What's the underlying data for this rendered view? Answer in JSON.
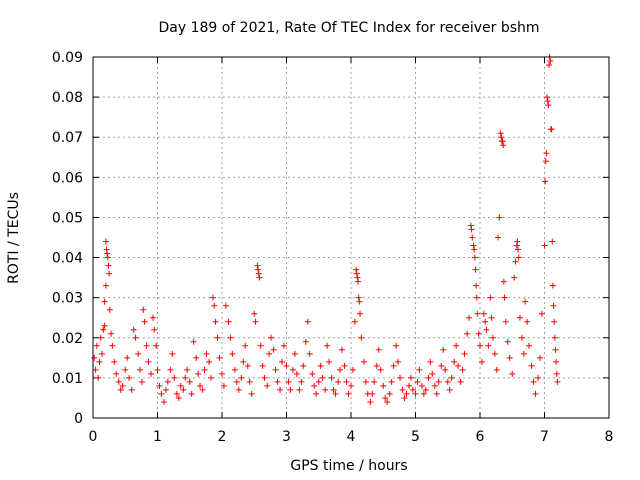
{
  "chart_data": {
    "type": "scatter",
    "title": "Day 189 of 2021, Rate Of TEC Index for receiver bshm",
    "xlabel": "GPS time / hours",
    "ylabel": "ROTI / TECUs",
    "xlim": [
      0,
      8
    ],
    "ylim": [
      0,
      0.09
    ],
    "x_ticks": [
      "0",
      "1",
      "2",
      "3",
      "4",
      "5",
      "6",
      "7",
      "8"
    ],
    "y_ticks": [
      "0",
      "0.01",
      "0.02",
      "0.03",
      "0.04",
      "0.05",
      "0.06",
      "0.07",
      "0.08",
      "0.09"
    ],
    "grid": true,
    "marker": "+",
    "color": "#ff0000",
    "series": [
      {
        "points": [
          [
            0.02,
            0.015
          ],
          [
            0.04,
            0.012
          ],
          [
            0.06,
            0.018
          ],
          [
            0.08,
            0.01
          ],
          [
            0.1,
            0.014
          ],
          [
            0.12,
            0.02
          ],
          [
            0.14,
            0.016
          ],
          [
            0.16,
            0.022
          ],
          [
            0.18,
            0.023
          ],
          [
            0.2,
            0.044
          ],
          [
            0.21,
            0.042
          ],
          [
            0.22,
            0.041
          ],
          [
            0.23,
            0.04
          ],
          [
            0.24,
            0.038
          ],
          [
            0.25,
            0.036
          ],
          [
            0.2,
            0.033
          ],
          [
            0.18,
            0.029
          ],
          [
            0.26,
            0.027
          ],
          [
            0.28,
            0.021
          ],
          [
            0.3,
            0.018
          ],
          [
            0.33,
            0.014
          ],
          [
            0.36,
            0.011
          ],
          [
            0.4,
            0.009
          ],
          [
            0.43,
            0.007
          ],
          [
            0.46,
            0.008
          ],
          [
            0.5,
            0.012
          ],
          [
            0.53,
            0.015
          ],
          [
            0.56,
            0.01
          ],
          [
            0.6,
            0.007
          ],
          [
            0.63,
            0.022
          ],
          [
            0.66,
            0.02
          ],
          [
            0.7,
            0.016
          ],
          [
            0.73,
            0.012
          ],
          [
            0.76,
            0.009
          ],
          [
            0.78,
            0.027
          ],
          [
            0.8,
            0.024
          ],
          [
            0.83,
            0.018
          ],
          [
            0.86,
            0.014
          ],
          [
            0.9,
            0.011
          ],
          [
            0.93,
            0.025
          ],
          [
            0.95,
            0.022
          ],
          [
            0.98,
            0.018
          ],
          [
            1.0,
            0.012
          ],
          [
            1.03,
            0.008
          ],
          [
            1.06,
            0.006
          ],
          [
            1.1,
            0.004
          ],
          [
            1.13,
            0.007
          ],
          [
            1.16,
            0.009
          ],
          [
            1.2,
            0.012
          ],
          [
            1.23,
            0.016
          ],
          [
            1.26,
            0.01
          ],
          [
            1.3,
            0.006
          ],
          [
            1.33,
            0.005
          ],
          [
            1.36,
            0.008
          ],
          [
            1.4,
            0.007
          ],
          [
            1.43,
            0.01
          ],
          [
            1.46,
            0.012
          ],
          [
            1.5,
            0.009
          ],
          [
            1.53,
            0.006
          ],
          [
            1.56,
            0.019
          ],
          [
            1.6,
            0.015
          ],
          [
            1.63,
            0.011
          ],
          [
            1.66,
            0.008
          ],
          [
            1.7,
            0.007
          ],
          [
            1.73,
            0.012
          ],
          [
            1.76,
            0.016
          ],
          [
            1.8,
            0.014
          ],
          [
            1.83,
            0.01
          ],
          [
            1.86,
            0.03
          ],
          [
            1.88,
            0.028
          ],
          [
            1.9,
            0.024
          ],
          [
            1.93,
            0.02
          ],
          [
            1.96,
            0.015
          ],
          [
            2.0,
            0.011
          ],
          [
            2.03,
            0.008
          ],
          [
            2.06,
            0.028
          ],
          [
            2.1,
            0.024
          ],
          [
            2.13,
            0.02
          ],
          [
            2.16,
            0.016
          ],
          [
            2.2,
            0.012
          ],
          [
            2.23,
            0.009
          ],
          [
            2.26,
            0.007
          ],
          [
            2.3,
            0.01
          ],
          [
            2.33,
            0.014
          ],
          [
            2.36,
            0.018
          ],
          [
            2.4,
            0.013
          ],
          [
            2.43,
            0.009
          ],
          [
            2.46,
            0.006
          ],
          [
            2.5,
            0.026
          ],
          [
            2.52,
            0.024
          ],
          [
            2.55,
            0.038
          ],
          [
            2.56,
            0.037
          ],
          [
            2.57,
            0.036
          ],
          [
            2.58,
            0.035
          ],
          [
            2.6,
            0.018
          ],
          [
            2.63,
            0.013
          ],
          [
            2.66,
            0.01
          ],
          [
            2.7,
            0.008
          ],
          [
            2.73,
            0.016
          ],
          [
            2.76,
            0.02
          ],
          [
            2.8,
            0.017
          ],
          [
            2.83,
            0.012
          ],
          [
            2.86,
            0.009
          ],
          [
            2.9,
            0.007
          ],
          [
            2.93,
            0.014
          ],
          [
            2.96,
            0.018
          ],
          [
            3.0,
            0.013
          ],
          [
            3.03,
            0.009
          ],
          [
            3.06,
            0.007
          ],
          [
            3.1,
            0.012
          ],
          [
            3.13,
            0.016
          ],
          [
            3.16,
            0.011
          ],
          [
            3.2,
            0.007
          ],
          [
            3.23,
            0.009
          ],
          [
            3.26,
            0.013
          ],
          [
            3.3,
            0.019
          ],
          [
            3.33,
            0.024
          ],
          [
            3.36,
            0.016
          ],
          [
            3.4,
            0.011
          ],
          [
            3.43,
            0.008
          ],
          [
            3.46,
            0.006
          ],
          [
            3.5,
            0.009
          ],
          [
            3.53,
            0.013
          ],
          [
            3.56,
            0.01
          ],
          [
            3.6,
            0.007
          ],
          [
            3.63,
            0.018
          ],
          [
            3.66,
            0.014
          ],
          [
            3.7,
            0.01
          ],
          [
            3.73,
            0.007
          ],
          [
            3.76,
            0.006
          ],
          [
            3.8,
            0.009
          ],
          [
            3.83,
            0.012
          ],
          [
            3.86,
            0.017
          ],
          [
            3.9,
            0.013
          ],
          [
            3.93,
            0.009
          ],
          [
            3.96,
            0.006
          ],
          [
            4.0,
            0.008
          ],
          [
            4.03,
            0.012
          ],
          [
            4.06,
            0.024
          ],
          [
            4.08,
            0.037
          ],
          [
            4.09,
            0.036
          ],
          [
            4.1,
            0.035
          ],
          [
            4.11,
            0.034
          ],
          [
            4.12,
            0.03
          ],
          [
            4.13,
            0.029
          ],
          [
            4.14,
            0.026
          ],
          [
            4.16,
            0.02
          ],
          [
            4.2,
            0.014
          ],
          [
            4.23,
            0.009
          ],
          [
            4.26,
            0.006
          ],
          [
            4.3,
            0.004
          ],
          [
            4.33,
            0.006
          ],
          [
            4.36,
            0.009
          ],
          [
            4.4,
            0.013
          ],
          [
            4.43,
            0.017
          ],
          [
            4.46,
            0.012
          ],
          [
            4.5,
            0.008
          ],
          [
            4.53,
            0.005
          ],
          [
            4.56,
            0.004
          ],
          [
            4.6,
            0.006
          ],
          [
            4.63,
            0.009
          ],
          [
            4.66,
            0.013
          ],
          [
            4.7,
            0.018
          ],
          [
            4.73,
            0.014
          ],
          [
            4.76,
            0.01
          ],
          [
            4.8,
            0.007
          ],
          [
            4.83,
            0.005
          ],
          [
            4.86,
            0.006
          ],
          [
            4.9,
            0.008
          ],
          [
            4.93,
            0.01
          ],
          [
            4.96,
            0.007
          ],
          [
            5.0,
            0.006
          ],
          [
            5.03,
            0.009
          ],
          [
            5.06,
            0.012
          ],
          [
            5.1,
            0.008
          ],
          [
            5.13,
            0.006
          ],
          [
            5.16,
            0.007
          ],
          [
            5.2,
            0.01
          ],
          [
            5.23,
            0.014
          ],
          [
            5.26,
            0.011
          ],
          [
            5.3,
            0.008
          ],
          [
            5.33,
            0.006
          ],
          [
            5.36,
            0.009
          ],
          [
            5.4,
            0.013
          ],
          [
            5.43,
            0.017
          ],
          [
            5.46,
            0.012
          ],
          [
            5.5,
            0.009
          ],
          [
            5.53,
            0.007
          ],
          [
            5.56,
            0.01
          ],
          [
            5.6,
            0.014
          ],
          [
            5.63,
            0.018
          ],
          [
            5.66,
            0.013
          ],
          [
            5.7,
            0.009
          ],
          [
            5.73,
            0.012
          ],
          [
            5.76,
            0.016
          ],
          [
            5.8,
            0.021
          ],
          [
            5.83,
            0.025
          ],
          [
            5.86,
            0.048
          ],
          [
            5.87,
            0.047
          ],
          [
            5.88,
            0.045
          ],
          [
            5.9,
            0.043
          ],
          [
            5.91,
            0.042
          ],
          [
            5.92,
            0.04
          ],
          [
            5.93,
            0.037
          ],
          [
            5.94,
            0.033
          ],
          [
            5.95,
            0.03
          ],
          [
            5.96,
            0.026
          ],
          [
            5.98,
            0.021
          ],
          [
            6.0,
            0.018
          ],
          [
            6.03,
            0.014
          ],
          [
            6.06,
            0.026
          ],
          [
            6.08,
            0.024
          ],
          [
            6.1,
            0.022
          ],
          [
            6.13,
            0.018
          ],
          [
            6.16,
            0.03
          ],
          [
            6.18,
            0.025
          ],
          [
            6.2,
            0.02
          ],
          [
            6.23,
            0.016
          ],
          [
            6.26,
            0.012
          ],
          [
            6.28,
            0.045
          ],
          [
            6.3,
            0.05
          ],
          [
            6.32,
            0.071
          ],
          [
            6.33,
            0.07
          ],
          [
            6.34,
            0.069
          ],
          [
            6.35,
            0.069
          ],
          [
            6.36,
            0.068
          ],
          [
            6.37,
            0.034
          ],
          [
            6.38,
            0.03
          ],
          [
            6.4,
            0.024
          ],
          [
            6.43,
            0.019
          ],
          [
            6.46,
            0.015
          ],
          [
            6.5,
            0.011
          ],
          [
            6.53,
            0.035
          ],
          [
            6.55,
            0.039
          ],
          [
            6.57,
            0.043
          ],
          [
            6.58,
            0.044
          ],
          [
            6.59,
            0.042
          ],
          [
            6.6,
            0.04
          ],
          [
            6.62,
            0.025
          ],
          [
            6.65,
            0.02
          ],
          [
            6.68,
            0.016
          ],
          [
            6.7,
            0.029
          ],
          [
            6.73,
            0.024
          ],
          [
            6.76,
            0.018
          ],
          [
            6.8,
            0.013
          ],
          [
            6.83,
            0.009
          ],
          [
            6.86,
            0.006
          ],
          [
            6.9,
            0.01
          ],
          [
            6.93,
            0.015
          ],
          [
            6.96,
            0.026
          ],
          [
            7.0,
            0.043
          ],
          [
            7.01,
            0.059
          ],
          [
            7.02,
            0.064
          ],
          [
            7.03,
            0.066
          ],
          [
            7.04,
            0.08
          ],
          [
            7.05,
            0.079
          ],
          [
            7.06,
            0.078
          ],
          [
            7.07,
            0.088
          ],
          [
            7.08,
            0.09
          ],
          [
            7.09,
            0.089
          ],
          [
            7.1,
            0.072
          ],
          [
            7.11,
            0.072
          ],
          [
            7.12,
            0.044
          ],
          [
            7.13,
            0.033
          ],
          [
            7.14,
            0.028
          ],
          [
            7.15,
            0.024
          ],
          [
            7.16,
            0.02
          ],
          [
            7.17,
            0.017
          ],
          [
            7.18,
            0.014
          ],
          [
            7.19,
            0.011
          ],
          [
            7.2,
            0.009
          ]
        ]
      }
    ]
  }
}
